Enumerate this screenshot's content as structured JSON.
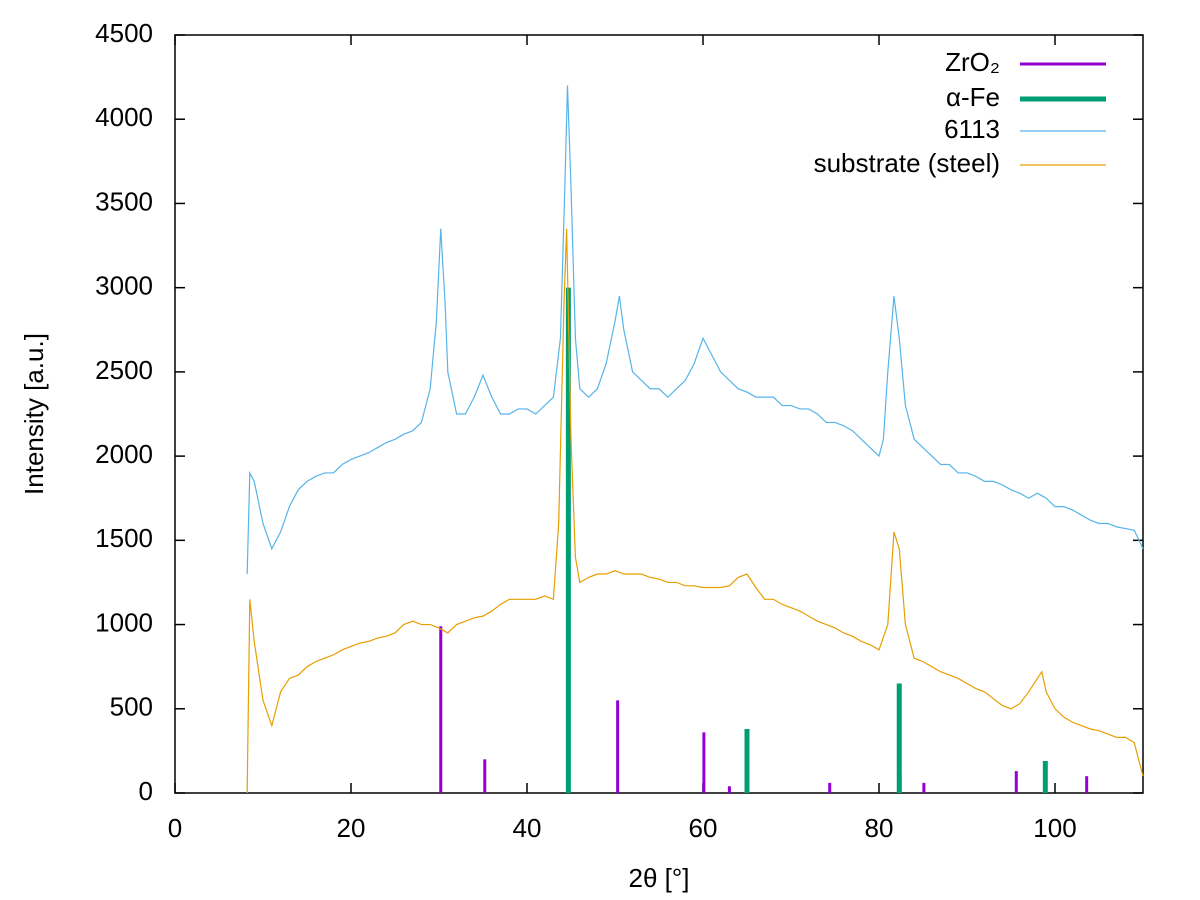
{
  "chart_data": {
    "type": "line",
    "x_label": "2θ [°]",
    "y_label": "Intensity [a.u.]",
    "xlim": [
      0,
      110
    ],
    "ylim": [
      0,
      4500
    ],
    "xticks": [
      0,
      20,
      40,
      60,
      80,
      100
    ],
    "yticks": [
      0,
      500,
      1000,
      1500,
      2000,
      2500,
      3000,
      3500,
      4000,
      4500
    ],
    "grid": false,
    "legend": "top right",
    "series": [
      {
        "name": "ZrO₂",
        "color": "#9400d3",
        "style": "impulses",
        "x": [
          30.2,
          35.2,
          50.3,
          60.1,
          63.0,
          74.4,
          82.4,
          85.1,
          95.6,
          103.6
        ],
        "values": [
          990,
          200,
          550,
          360,
          40,
          60,
          120,
          60,
          130,
          100
        ]
      },
      {
        "name": "α-Fe",
        "color": "#009e73",
        "style": "impulses",
        "x": [
          44.7,
          65.0,
          82.3,
          98.9
        ],
        "values": [
          3000,
          380,
          650,
          190
        ]
      },
      {
        "name": "6113",
        "color": "#56b4e9",
        "style": "lines",
        "x": [
          8.2,
          8.5,
          9,
          10,
          11,
          12,
          13,
          14,
          15,
          16,
          17,
          18,
          19,
          20,
          21,
          22,
          23,
          24,
          25,
          26,
          27,
          28,
          29,
          29.7,
          30.2,
          30.7,
          31,
          32,
          33,
          34,
          35,
          36,
          37,
          38,
          39,
          40,
          41,
          42,
          43,
          43.8,
          44.3,
          44.6,
          45,
          45.5,
          46,
          47,
          48,
          49,
          50,
          50.5,
          51,
          52,
          53,
          54,
          55,
          56,
          57,
          58,
          59,
          60,
          61,
          62,
          63,
          64,
          65,
          66,
          67,
          68,
          69,
          70,
          71,
          72,
          73,
          74,
          75,
          76,
          77,
          78,
          79,
          80,
          80.5,
          81,
          81.7,
          82.3,
          83,
          84,
          85,
          86,
          87,
          88,
          89,
          90,
          91,
          92,
          93,
          94,
          95,
          96,
          97,
          98,
          99,
          100,
          101,
          102,
          103,
          104,
          105,
          106,
          107,
          108,
          109,
          110
        ],
        "values": [
          1300,
          1900,
          1850,
          1600,
          1450,
          1550,
          1700,
          1800,
          1850,
          1880,
          1900,
          1900,
          1950,
          1980,
          2000,
          2020,
          2050,
          2080,
          2100,
          2130,
          2150,
          2200,
          2400,
          2800,
          3350,
          2900,
          2500,
          2250,
          2250,
          2350,
          2480,
          2350,
          2250,
          2250,
          2280,
          2280,
          2250,
          2300,
          2350,
          2700,
          3600,
          4200,
          3600,
          2700,
          2400,
          2350,
          2400,
          2550,
          2800,
          2950,
          2750,
          2500,
          2450,
          2400,
          2400,
          2350,
          2400,
          2450,
          2550,
          2700,
          2600,
          2500,
          2450,
          2400,
          2380,
          2350,
          2350,
          2350,
          2300,
          2300,
          2280,
          2280,
          2250,
          2200,
          2200,
          2180,
          2150,
          2100,
          2050,
          2000,
          2100,
          2500,
          2950,
          2700,
          2300,
          2100,
          2050,
          2000,
          1950,
          1950,
          1900,
          1900,
          1880,
          1850,
          1850,
          1830,
          1800,
          1780,
          1750,
          1780,
          1750,
          1700,
          1700,
          1680,
          1650,
          1620,
          1600,
          1600,
          1580,
          1570,
          1560,
          1450
        ]
      },
      {
        "name": "substrate (steel)",
        "color": "#e69f00",
        "style": "lines",
        "x": [
          8.2,
          8.5,
          9,
          10,
          11,
          12,
          13,
          14,
          15,
          16,
          17,
          18,
          19,
          20,
          21,
          22,
          23,
          24,
          25,
          26,
          27,
          28,
          29,
          30,
          31,
          32,
          33,
          34,
          35,
          36,
          37,
          38,
          39,
          40,
          41,
          42,
          43,
          43.6,
          44.2,
          44.5,
          45,
          45.5,
          46,
          47,
          48,
          49,
          50,
          51,
          52,
          53,
          54,
          55,
          56,
          57,
          58,
          59,
          60,
          61,
          62,
          63,
          64,
          65,
          66,
          67,
          68,
          69,
          70,
          71,
          72,
          73,
          74,
          75,
          76,
          77,
          78,
          79,
          80,
          81,
          81.7,
          82.3,
          83,
          84,
          85,
          86,
          87,
          88,
          89,
          90,
          91,
          92,
          93,
          94,
          95,
          96,
          97,
          98,
          98.5,
          99,
          100,
          101,
          102,
          103,
          104,
          105,
          106,
          107,
          108,
          109,
          110
        ],
        "values": [
          0,
          1150,
          900,
          550,
          400,
          600,
          680,
          700,
          750,
          780,
          800,
          820,
          850,
          870,
          890,
          900,
          920,
          930,
          950,
          1000,
          1020,
          1000,
          1000,
          980,
          950,
          1000,
          1020,
          1040,
          1050,
          1080,
          1120,
          1150,
          1150,
          1150,
          1150,
          1170,
          1150,
          1600,
          2900,
          3350,
          2100,
          1400,
          1250,
          1280,
          1300,
          1300,
          1320,
          1300,
          1300,
          1300,
          1280,
          1270,
          1250,
          1250,
          1230,
          1230,
          1220,
          1220,
          1220,
          1230,
          1280,
          1300,
          1220,
          1150,
          1150,
          1120,
          1100,
          1080,
          1050,
          1020,
          1000,
          980,
          950,
          930,
          900,
          880,
          850,
          1000,
          1550,
          1450,
          1000,
          800,
          780,
          750,
          720,
          700,
          680,
          650,
          620,
          600,
          560,
          520,
          500,
          530,
          600,
          680,
          720,
          600,
          500,
          450,
          420,
          400,
          380,
          370,
          350,
          330,
          330,
          300,
          100
        ]
      }
    ]
  }
}
